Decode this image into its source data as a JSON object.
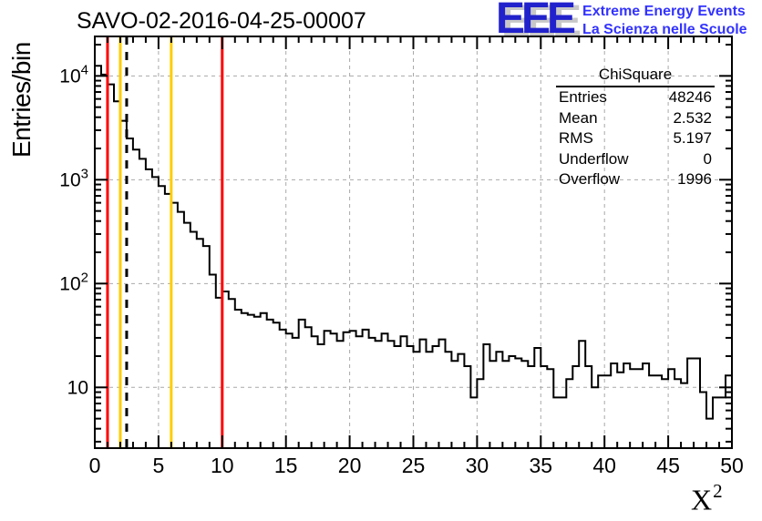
{
  "window": {
    "title": "SAVO-02-2016-04-25-00007"
  },
  "logo": {
    "mark": "EEE",
    "line1": "Extreme Energy Events",
    "line2": "La Scienza nelle Scuole",
    "blue": "#2222cc",
    "text_blue": "#3333ff",
    "shadow_gray": "#c8c8c8"
  },
  "stats": {
    "title": "ChiSquare",
    "rows": [
      {
        "label": "Entries",
        "value": "48246"
      },
      {
        "label": "Mean",
        "value": "2.532"
      },
      {
        "label": "RMS",
        "value": "5.197"
      },
      {
        "label": "Underflow",
        "value": "0"
      },
      {
        "label": "Overflow",
        "value": "1996"
      }
    ]
  },
  "axes": {
    "x_label": "X",
    "x_label_sup": "2",
    "y_label": "Entries/bin",
    "x_ticks": [
      0,
      5,
      10,
      15,
      20,
      25,
      30,
      35,
      40,
      45,
      50
    ],
    "y_decades": [
      1,
      2,
      3,
      4
    ]
  },
  "chart_data": {
    "type": "bar",
    "subtype": "step-histogram",
    "title": "SAVO-02-2016-04-25-00007",
    "xlabel": "X^2",
    "ylabel": "Entries/bin",
    "xlim": [
      0,
      50
    ],
    "ylim": [
      2.6,
      24000
    ],
    "yscale": "log",
    "grid": true,
    "grid_color": "#a9a9a9",
    "line_color": "#000000",
    "x_bin_start": 0,
    "x_bin_width": 0.5,
    "values": [
      12500,
      10300,
      8300,
      5700,
      3700,
      2500,
      1950,
      1590,
      1260,
      1060,
      870,
      730,
      600,
      490,
      385,
      315,
      270,
      230,
      122,
      73,
      84,
      71,
      56,
      52,
      50,
      48,
      52,
      45,
      42,
      36,
      33,
      30,
      45,
      38,
      31,
      26,
      35,
      33,
      28,
      34,
      35,
      31,
      36,
      30,
      28,
      33,
      28,
      25,
      31,
      25,
      22,
      29,
      22,
      25,
      29,
      22,
      18,
      21,
      16,
      8,
      12,
      26,
      18,
      22,
      18,
      20,
      19,
      18,
      16,
      24,
      16,
      15,
      8,
      8,
      12,
      16,
      28,
      16,
      10,
      13,
      13,
      17,
      14,
      17,
      15,
      15,
      17,
      13,
      13,
      12,
      15,
      12,
      11,
      19,
      19,
      9,
      5,
      8,
      8,
      13
    ],
    "vlines": [
      {
        "name": "red-cut-low",
        "x": 1.0,
        "color": "#ff0000",
        "style": "solid",
        "width": 3
      },
      {
        "name": "yellow-cut-low",
        "x": 2.0,
        "color": "#ffcc00",
        "style": "solid",
        "width": 3
      },
      {
        "name": "mean-dashed",
        "x": 2.5,
        "color": "#000000",
        "style": "dashed",
        "width": 3
      },
      {
        "name": "yellow-cut-high",
        "x": 6.0,
        "color": "#ffcc00",
        "style": "solid",
        "width": 3
      },
      {
        "name": "red-cut-high",
        "x": 10.0,
        "color": "#ff0000",
        "style": "solid",
        "width": 3
      }
    ]
  }
}
